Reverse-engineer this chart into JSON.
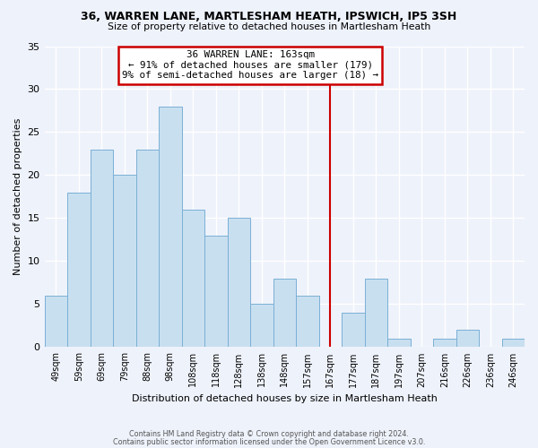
{
  "title": "36, WARREN LANE, MARTLESHAM HEATH, IPSWICH, IP5 3SH",
  "subtitle": "Size of property relative to detached houses in Martlesham Heath",
  "xlabel": "Distribution of detached houses by size in Martlesham Heath",
  "ylabel": "Number of detached properties",
  "bar_labels": [
    "49sqm",
    "59sqm",
    "69sqm",
    "79sqm",
    "88sqm",
    "98sqm",
    "108sqm",
    "118sqm",
    "128sqm",
    "138sqm",
    "148sqm",
    "157sqm",
    "167sqm",
    "177sqm",
    "187sqm",
    "197sqm",
    "207sqm",
    "216sqm",
    "226sqm",
    "236sqm",
    "246sqm"
  ],
  "bar_values": [
    6,
    18,
    23,
    20,
    23,
    28,
    16,
    13,
    15,
    5,
    8,
    6,
    0,
    4,
    8,
    1,
    0,
    1,
    2,
    0,
    1
  ],
  "bar_color": "#c8dff0",
  "bar_edge_color": "#7ab0d4",
  "vline_x": 12,
  "vline_color": "#cc0000",
  "annotation_title": "36 WARREN LANE: 163sqm",
  "annotation_line1": "← 91% of detached houses are smaller (179)",
  "annotation_line2": "9% of semi-detached houses are larger (18) →",
  "annotation_box_color": "white",
  "annotation_box_edge_color": "#cc0000",
  "ylim": [
    0,
    35
  ],
  "yticks": [
    0,
    5,
    10,
    15,
    20,
    25,
    30,
    35
  ],
  "footer1": "Contains HM Land Registry data © Crown copyright and database right 2024.",
  "footer2": "Contains public sector information licensed under the Open Government Licence v3.0.",
  "background_color": "#eef2fb",
  "grid_color": "white"
}
